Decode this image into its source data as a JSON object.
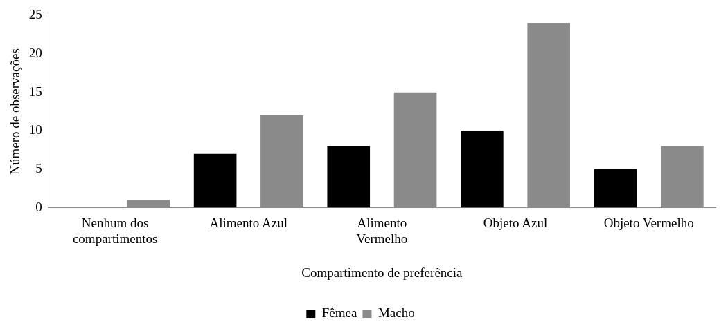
{
  "chart_data": {
    "type": "bar",
    "xlabel": "Compartimento de preferência",
    "ylabel": "Número de observações",
    "categories": [
      "Nenhum dos compartimentos",
      "Alimento Azul",
      "Alimento Vermelho",
      "Objeto Azul",
      "Objeto Vermelho"
    ],
    "series": [
      {
        "name": "Fêmea",
        "color": "#000000",
        "values": [
          0,
          7,
          8,
          10,
          5
        ]
      },
      {
        "name": "Macho",
        "color": "#8a8a8a",
        "values": [
          1,
          12,
          15,
          24,
          8
        ]
      }
    ],
    "ylim": [
      0,
      25
    ],
    "yticks": [
      0,
      5,
      10,
      15,
      20,
      25
    ],
    "grid": false,
    "legend": "bottom"
  }
}
